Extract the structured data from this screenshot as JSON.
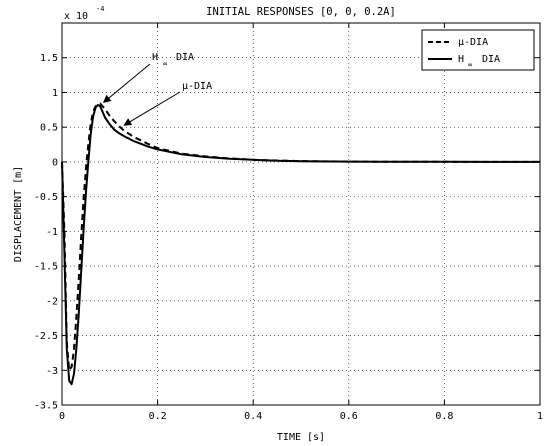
{
  "chart_data": {
    "type": "line",
    "title": "INITIAL RESPONSES [0, 0, 0.2A]",
    "xlabel": "TIME [s]",
    "ylabel": "DISPLACEMENT [m]",
    "y_multiplier": {
      "base": "x 10",
      "exponent": "-4"
    },
    "xlim": [
      0,
      1
    ],
    "ylim": [
      -3.5,
      2.0
    ],
    "x_ticks": [
      0,
      0.2,
      0.4,
      0.6,
      0.8,
      1
    ],
    "x_tick_labels": [
      "0",
      "0.2",
      "0.4",
      "0.6",
      "0.8",
      "1"
    ],
    "y_ticks": [
      -3.5,
      -3,
      -2.5,
      -2,
      -1.5,
      -1,
      -0.5,
      0,
      0.5,
      1,
      1.5
    ],
    "y_tick_labels": [
      "-3.5",
      "-3",
      "-2.5",
      "-2",
      "-1.5",
      "-1",
      "-0.5",
      "0",
      "0.5",
      "1",
      "1.5"
    ],
    "grid": true,
    "legend_position": "top-right",
    "series": [
      {
        "name": "μ-DIA",
        "style": "dashed",
        "color": "#000000",
        "x": [
          0,
          0.005,
          0.01,
          0.015,
          0.02,
          0.025,
          0.03,
          0.035,
          0.04,
          0.045,
          0.05,
          0.055,
          0.06,
          0.065,
          0.07,
          0.075,
          0.08,
          0.085,
          0.09,
          0.1,
          0.11,
          0.12,
          0.13,
          0.15,
          0.18,
          0.2,
          0.25,
          0.3,
          0.35,
          0.4,
          0.45,
          0.5,
          0.6,
          0.7,
          0.8,
          0.9,
          1.0
        ],
        "y": [
          0,
          -1.0,
          -2.6,
          -3.0,
          -2.95,
          -2.7,
          -2.25,
          -1.7,
          -1.1,
          -0.55,
          -0.1,
          0.25,
          0.55,
          0.72,
          0.8,
          0.82,
          0.84,
          0.8,
          0.76,
          0.66,
          0.58,
          0.51,
          0.45,
          0.36,
          0.26,
          0.2,
          0.12,
          0.08,
          0.05,
          0.03,
          0.02,
          0.012,
          0.005,
          0.002,
          0.001,
          0.0,
          0.0
        ]
      },
      {
        "name": "H ∞ DIA",
        "style": "solid",
        "color": "#000000",
        "x": [
          0,
          0.005,
          0.01,
          0.015,
          0.02,
          0.025,
          0.03,
          0.035,
          0.04,
          0.045,
          0.05,
          0.055,
          0.06,
          0.065,
          0.07,
          0.075,
          0.08,
          0.085,
          0.09,
          0.1,
          0.11,
          0.12,
          0.13,
          0.15,
          0.18,
          0.2,
          0.25,
          0.3,
          0.35,
          0.4,
          0.45,
          0.5,
          0.6,
          0.7,
          0.8,
          0.9,
          1.0
        ],
        "y": [
          0,
          -1.3,
          -2.7,
          -3.15,
          -3.2,
          -3.05,
          -2.7,
          -2.2,
          -1.6,
          -1.0,
          -0.45,
          0.0,
          0.4,
          0.65,
          0.78,
          0.82,
          0.8,
          0.72,
          0.64,
          0.54,
          0.46,
          0.41,
          0.37,
          0.3,
          0.22,
          0.18,
          0.11,
          0.07,
          0.045,
          0.03,
          0.018,
          0.01,
          0.004,
          0.002,
          0.001,
          0.0,
          0.0
        ]
      }
    ],
    "annotations": [
      {
        "text_main": "H",
        "text_sub": "∞",
        "text_tail": "DIA",
        "target_x": 0.083,
        "target_y": 0.8
      },
      {
        "text_main": "μ-DIA",
        "target_x": 0.128,
        "target_y": 0.5
      }
    ],
    "legend": {
      "mu": {
        "label": "μ-DIA"
      },
      "hinf": {
        "label_main": "H",
        "label_sub": "∞",
        "label_tail": "DIA"
      }
    }
  }
}
